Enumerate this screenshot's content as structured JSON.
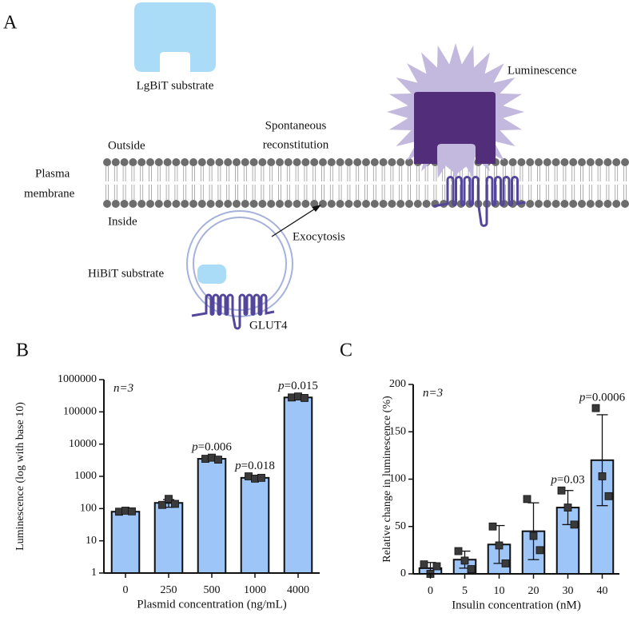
{
  "diagram": {
    "panel_label": "A",
    "lgbit_label": "LgBiT substrate",
    "luminescence_label": "Luminescence",
    "reconstitution_label": [
      "Spontaneous",
      "reconstitution"
    ],
    "outside_label": "Outside",
    "membrane_label": [
      "Plasma",
      "membrane"
    ],
    "inside_label": "Inside",
    "exocytosis_label": "Exocytosis",
    "hibit_label": "HiBiT substrate",
    "glut4_label": "GLUT4"
  },
  "chart_data": [
    {
      "type": "bar",
      "panel_label": "B",
      "log_scale": true,
      "categories": [
        "0",
        "250",
        "500",
        "1000",
        "4000"
      ],
      "values": [
        80,
        150,
        3500,
        900,
        280000
      ],
      "errors": [
        5,
        40,
        300,
        80,
        20000
      ],
      "points": [
        [
          80,
          86,
          82
        ],
        [
          130,
          200,
          140
        ],
        [
          3500,
          3800,
          3300
        ],
        [
          1000,
          850,
          900
        ],
        [
          280000,
          300000,
          270000
        ]
      ],
      "color": "#9ec5f8",
      "ylim": [
        1,
        1000000
      ],
      "yticks": [
        1,
        10,
        100,
        1000,
        10000,
        100000,
        1000000
      ],
      "xlabel": "Plasmid concentration (ng/mL)",
      "ylabel": "Luminescence (log with base 10)",
      "sample_size_label": "n=3",
      "annotations": [
        {
          "category": "500",
          "text": "p=0.006"
        },
        {
          "category": "1000",
          "text": "p=0.018"
        },
        {
          "category": "4000",
          "text": "p=0.015"
        }
      ]
    },
    {
      "type": "bar",
      "panel_label": "C",
      "log_scale": false,
      "categories": [
        "0",
        "5",
        "10",
        "20",
        "30",
        "40"
      ],
      "values": [
        6,
        15,
        31,
        45,
        70,
        120
      ],
      "errors": [
        6,
        9,
        20,
        30,
        18,
        48
      ],
      "points": [
        [
          10,
          0,
          8
        ],
        [
          24,
          14,
          5
        ],
        [
          50,
          30,
          11
        ],
        [
          79,
          40,
          25
        ],
        [
          88,
          70,
          52
        ],
        [
          175,
          103,
          82
        ]
      ],
      "color": "#9ec5f8",
      "ylim": [
        0,
        200
      ],
      "yticks": [
        0,
        50,
        100,
        150,
        200
      ],
      "xlabel": "Insulin concentration (nM)",
      "ylabel": "Relative change in luminescence (%)",
      "sample_size_label": "n=3",
      "annotations": [
        {
          "category": "30",
          "text": "p=0.03"
        },
        {
          "category": "40",
          "text": "p=0.0006"
        }
      ]
    }
  ]
}
